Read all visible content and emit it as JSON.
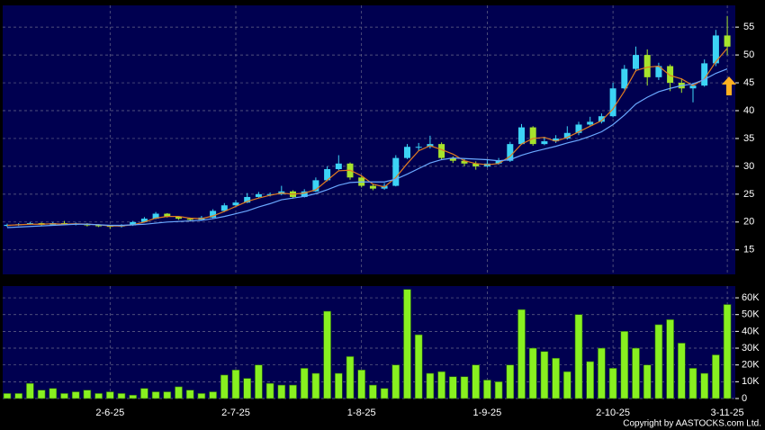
{
  "chart_data": {
    "type": "candlestick",
    "categories": [
      null,
      null,
      null,
      null,
      null,
      null,
      null,
      null,
      null,
      "2-6-25",
      null,
      null,
      null,
      null,
      null,
      null,
      null,
      null,
      null,
      null,
      "2-7-25",
      null,
      null,
      null,
      null,
      null,
      null,
      null,
      null,
      null,
      null,
      "1-8-25",
      null,
      null,
      null,
      null,
      null,
      null,
      null,
      null,
      null,
      null,
      "1-9-25",
      null,
      null,
      null,
      null,
      null,
      null,
      null,
      null,
      null,
      null,
      "2-10-25",
      null,
      null,
      null,
      null,
      null,
      null,
      null,
      null,
      null,
      "3-11-25"
    ],
    "open": [
      19.3,
      19.5,
      19.6,
      19.8,
      19.5,
      19.8,
      19.6,
      19.7,
      19.4,
      19.3,
      19.2,
      19.4,
      20.0,
      20.6,
      21.5,
      21.0,
      20.6,
      20.4,
      20.8,
      22.0,
      23.0,
      23.5,
      24.5,
      25.0,
      25.0,
      25.5,
      24.5,
      25.5,
      27.5,
      29.5,
      30.5,
      28.0,
      26.5,
      26.0,
      26.5,
      31.5,
      33.5,
      33.5,
      34.0,
      31.5,
      31.0,
      30.5,
      30.0,
      30.5,
      31.0,
      34.0,
      37.0,
      34.0,
      34.5,
      35.0,
      36.0,
      37.5,
      38.0,
      39.0,
      44.0,
      47.5,
      50.0,
      46.0,
      48.0,
      45.0,
      44.0,
      44.5,
      48.5,
      53.5
    ],
    "high": [
      19.7,
      19.8,
      20.0,
      19.9,
      20.0,
      20.2,
      19.9,
      19.8,
      19.6,
      19.5,
      19.6,
      20.2,
      20.9,
      21.8,
      21.6,
      21.1,
      20.8,
      21.1,
      22.3,
      23.4,
      23.9,
      25.2,
      25.4,
      25.3,
      26.5,
      25.7,
      25.9,
      28.0,
      30.0,
      32.0,
      30.7,
      28.3,
      26.8,
      27.0,
      32.0,
      34.0,
      34.2,
      35.5,
      34.3,
      31.8,
      31.3,
      30.9,
      31.2,
      31.5,
      34.4,
      37.6,
      37.2,
      35.3,
      35.6,
      37.2,
      38.0,
      38.9,
      39.5,
      45.0,
      48.2,
      51.5,
      51.0,
      48.6,
      48.3,
      45.8,
      45.0,
      49.2,
      54.5,
      57.0
    ],
    "low": [
      19.1,
      19.3,
      19.5,
      19.3,
      19.4,
      19.4,
      19.4,
      19.2,
      19.1,
      18.8,
      19.0,
      19.3,
      19.9,
      20.5,
      20.8,
      20.4,
      20.1,
      20.3,
      20.7,
      21.8,
      22.8,
      23.4,
      24.3,
      24.6,
      24.8,
      24.2,
      24.4,
      25.4,
      27.3,
      29.3,
      27.6,
      26.2,
      25.7,
      25.8,
      26.4,
      31.3,
      32.8,
      33.2,
      31.2,
      30.6,
      30.0,
      29.4,
      29.8,
      30.3,
      30.8,
      33.9,
      33.7,
      33.8,
      34.2,
      34.8,
      35.6,
      37.2,
      37.7,
      38.8,
      43.8,
      47.0,
      44.5,
      45.5,
      43.5,
      43.2,
      41.5,
      44.3,
      48.0,
      50.0
    ],
    "close": [
      19.5,
      19.6,
      19.8,
      19.5,
      19.8,
      19.6,
      19.7,
      19.4,
      19.3,
      19.2,
      19.4,
      20.0,
      20.6,
      21.5,
      21.0,
      20.6,
      20.4,
      20.8,
      22.0,
      23.0,
      23.5,
      24.5,
      25.0,
      25.0,
      25.5,
      24.5,
      25.5,
      27.5,
      29.5,
      30.5,
      28.0,
      26.5,
      26.0,
      26.5,
      31.5,
      33.5,
      33.5,
      34.0,
      31.5,
      31.0,
      30.5,
      30.0,
      30.5,
      31.0,
      34.0,
      37.0,
      34.0,
      34.5,
      35.0,
      36.0,
      37.5,
      38.0,
      39.0,
      44.0,
      47.5,
      50.0,
      46.0,
      48.0,
      45.0,
      44.0,
      44.5,
      48.5,
      53.5,
      51.5
    ],
    "up_color": "#3cd3f5",
    "down_color": "#a6e32c",
    "ma": [
      {
        "color": "#e07b20",
        "values": [
          19.4,
          19.5,
          19.6,
          19.6,
          19.7,
          19.6,
          19.7,
          19.6,
          19.5,
          19.3,
          19.3,
          19.5,
          20.0,
          20.7,
          21.0,
          21.0,
          20.7,
          20.6,
          21.1,
          21.9,
          22.8,
          23.7,
          24.3,
          24.8,
          25.2,
          25.0,
          25.2,
          25.8,
          27.5,
          29.2,
          29.3,
          28.3,
          26.8,
          26.3,
          28.0,
          30.5,
          32.8,
          33.7,
          33.0,
          32.2,
          31.0,
          30.5,
          30.3,
          30.5,
          31.8,
          34.0,
          35.0,
          35.2,
          34.5,
          35.2,
          36.2,
          37.2,
          38.2,
          40.3,
          43.5,
          47.2,
          47.8,
          48.0,
          46.3,
          45.7,
          44.5,
          45.7,
          48.8,
          51.2
        ]
      },
      {
        "color": "#6aa8ff",
        "values": [
          19.0,
          19.1,
          19.2,
          19.3,
          19.4,
          19.5,
          19.6,
          19.6,
          19.5,
          19.4,
          19.4,
          19.5,
          19.6,
          19.8,
          20.0,
          20.1,
          20.2,
          20.3,
          20.6,
          21.0,
          21.5,
          22.0,
          22.7,
          23.3,
          24.0,
          24.3,
          24.6,
          25.1,
          25.8,
          26.6,
          27.1,
          27.2,
          27.2,
          27.2,
          27.7,
          28.6,
          29.6,
          30.6,
          31.2,
          31.5,
          31.4,
          31.3,
          31.2,
          31.0,
          31.2,
          32.0,
          32.6,
          33.1,
          33.6,
          34.2,
          34.7,
          35.4,
          36.2,
          37.5,
          39.2,
          41.2,
          42.4,
          43.4,
          44.0,
          44.5,
          44.8,
          45.6,
          46.7,
          47.5
        ]
      }
    ],
    "ylim": [
      10.6,
      58.9
    ],
    "yticks": [
      15,
      20,
      25,
      30,
      35,
      40,
      45,
      50,
      55
    ],
    "volume": [
      3000,
      3000,
      9000,
      5000,
      6000,
      3000,
      4000,
      5000,
      3000,
      4000,
      3000,
      2000,
      6000,
      4000,
      4000,
      7000,
      5000,
      3000,
      4000,
      14000,
      17000,
      12000,
      20000,
      9000,
      8000,
      8000,
      18000,
      15000,
      52000,
      15000,
      25000,
      17000,
      8000,
      6000,
      20000,
      65000,
      38000,
      15000,
      16000,
      13000,
      13000,
      20000,
      11000,
      10000,
      20000,
      53000,
      30000,
      28000,
      24000,
      16000,
      50000,
      22000,
      30000,
      18000,
      40000,
      30000,
      20000,
      44000,
      47000,
      33000,
      18000,
      15000,
      26000,
      56000
    ],
    "volume_color": "#88f020",
    "vlim": [
      0,
      67000
    ],
    "vticks": [
      0,
      {
        "value": 10000,
        "label": "10K"
      },
      {
        "value": 20000,
        "label": "20K"
      },
      {
        "value": 30000,
        "label": "30K"
      },
      {
        "value": 40000,
        "label": "40K"
      },
      {
        "value": 50000,
        "label": "50K"
      },
      {
        "value": 60000,
        "label": "60K"
      }
    ],
    "grid": true,
    "copyright": "Copyright by AASTOCKS.com Ltd."
  }
}
